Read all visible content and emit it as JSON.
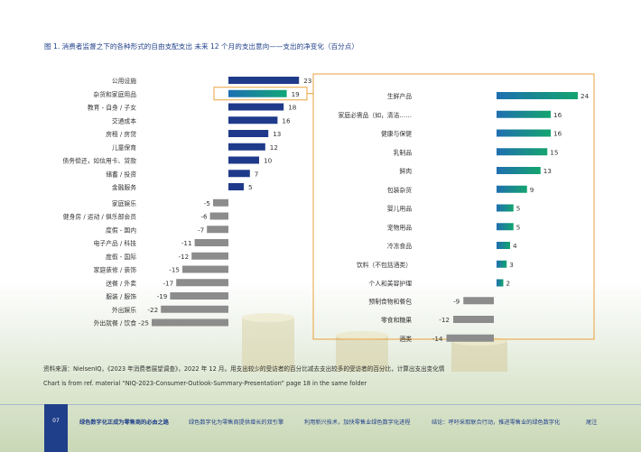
{
  "title": "图 1. 消费者监督之下的各种形式的自由支配支出   未来 12 个月的支出意向——支出的净变化（百分点）",
  "chart_data": [
    {
      "type": "bar",
      "orientation": "horizontal",
      "name": "left-panel",
      "categories": [
        "公用设施",
        "杂货和家庭用品",
        "教育 - 自身 / 子女",
        "交通成本",
        "房租 / 房贷",
        "儿童保育",
        "债务偿还，如信用卡、贷款",
        "储蓄 / 投资",
        "金融服务",
        "家庭娱乐",
        "健身房 / 运动 / 俱乐部会员",
        "度假 - 国内",
        "电子产品 / 科技",
        "度假 - 国际",
        "家庭装修 / 装饰",
        "送餐 / 外卖",
        "服装 / 服饰",
        "外出娱乐",
        "外出就餐 / 饮食"
      ],
      "values": [
        23,
        19,
        18,
        16,
        13,
        12,
        10,
        7,
        5,
        -5,
        -6,
        -7,
        -11,
        -12,
        -15,
        -17,
        -19,
        -22,
        -25
      ],
      "highlight": "杂货和家庭用品",
      "colors": {
        "positive": "#1f3a8a",
        "negative": "#8c8c8c",
        "highlight_start": "#1e6fb3",
        "highlight_end": "#12a777"
      }
    },
    {
      "type": "bar",
      "orientation": "horizontal",
      "name": "right-panel-detail",
      "categories": [
        "生鲜产品",
        "家庭必需品（如，清洁……",
        "健康与保健",
        "乳制品",
        "鲜肉",
        "包装杂货",
        "婴儿用品",
        "宠物用品",
        "冷冻食品",
        "饮料（不包括酒类）",
        "个人和美容护理",
        "预制食物和餐包",
        "零食和糖果",
        "酒类"
      ],
      "values": [
        24,
        16,
        16,
        15,
        13,
        9,
        5,
        5,
        4,
        3,
        2,
        -9,
        -12,
        -14
      ],
      "colors": {
        "gradient_start": "#1f6fb0",
        "gradient_end": "#14a46f",
        "negative": "#8c8c8c"
      }
    }
  ],
  "source": "资料来源：NielsenIQ，《2023 年消费者展望调查》，2022 年 12 月。用支出较少的受访者的百分比减去支出较多的受访者的百分比，计算出支出变化情",
  "note": "Chart is from ref. material “NIQ-2023-Consumer-Outlook-Summary-Presentation” page 18 in the same folder",
  "footer": {
    "page_number": "07",
    "nav": [
      "绿色数字化正成为零售商的必由之路",
      "绿色数字化为零售商提供增长的双引擎",
      "利用新兴技术，加快零售业绿色数字化进程",
      "结论：呼吁采取联合行动，推进零售业的绿色数字化",
      "尾注"
    ]
  }
}
